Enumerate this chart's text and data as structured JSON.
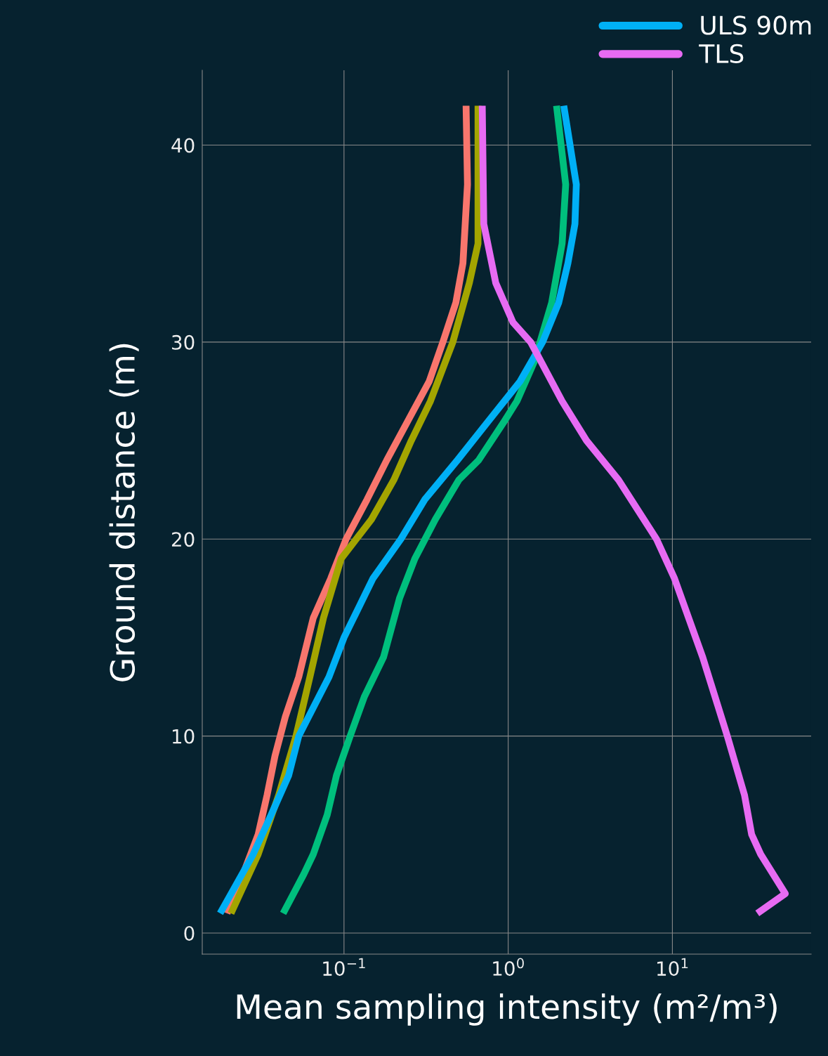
{
  "chart_data": {
    "type": "line",
    "xlabel": "Mean sampling intensity (m²/m³)",
    "ylabel": "Ground distance (m)",
    "log": "x",
    "grid": true,
    "legend": "top right",
    "line_style": "solid",
    "marker": "none",
    "xlim": [
      0.0137,
      70
    ],
    "ylim": [
      -1.07,
      43.8
    ],
    "xticks": [
      {
        "value": 0.1,
        "label": "10$^{−1}$"
      },
      {
        "value": 1,
        "label": "10$^{0}$"
      },
      {
        "value": 10,
        "label": "10$^{1}$"
      }
    ],
    "yticks": [
      0,
      10,
      20,
      30,
      40
    ],
    "series": [
      {
        "color": "#f8766d",
        "x": [
          0.554,
          0.565,
          0.53,
          0.48,
          0.4,
          0.33,
          0.245,
          0.182,
          0.138,
          0.103,
          0.083,
          0.065,
          0.053,
          0.044,
          0.038,
          0.034,
          0.03,
          0.0243,
          0.0194
        ],
        "values": [
          42,
          38,
          34,
          32,
          30,
          28,
          26,
          24,
          22,
          20,
          18,
          16,
          13,
          11,
          9,
          7,
          5,
          3,
          1
        ]
      },
      {
        "color": "#a3a500",
        "x": [
          0.655,
          0.655,
          0.655,
          0.58,
          0.46,
          0.336,
          0.257,
          0.201,
          0.147,
          0.096,
          0.075,
          0.062,
          0.051,
          0.04,
          0.03,
          0.0205
        ],
        "values": [
          42,
          38,
          35,
          33,
          30,
          27,
          25,
          23,
          21,
          19,
          16,
          13,
          10,
          7,
          4,
          1
        ]
      },
      {
        "color": "#00bf7d",
        "x": [
          1.97,
          2.24,
          2.13,
          1.84,
          1.44,
          1.13,
          0.95,
          0.66,
          0.5,
          0.36,
          0.27,
          0.218,
          0.174,
          0.133,
          0.109,
          0.09,
          0.079,
          0.065,
          0.057,
          0.0426
        ],
        "values": [
          42,
          38,
          35,
          32,
          29,
          27,
          26,
          24,
          23,
          21,
          19,
          17,
          14,
          12,
          10,
          8,
          6,
          4,
          3,
          1
        ]
      },
      {
        "name": "ULS 90m",
        "color": "#00b0f6",
        "x": [
          2.18,
          2.6,
          2.55,
          2.31,
          2.03,
          1.62,
          1.18,
          0.76,
          0.49,
          0.31,
          0.222,
          0.15,
          0.1,
          0.081,
          0.053,
          0.046,
          0.036,
          0.028,
          0.0176
        ],
        "values": [
          42,
          38,
          36,
          34,
          32,
          30,
          28,
          26,
          24,
          22,
          20,
          18,
          15,
          13,
          10,
          8,
          6,
          4,
          1
        ]
      },
      {
        "name": "TLS",
        "color": "#e76bf3",
        "x": [
          0.695,
          0.71,
          0.84,
          1.07,
          1.37,
          2.13,
          3.0,
          4.7,
          8.0,
          10.3,
          15.3,
          21.6,
          27.5,
          30.4,
          34.5,
          48.7,
          32.9
        ],
        "values": [
          42,
          36,
          33,
          31,
          30,
          27,
          25,
          23,
          20,
          18,
          14,
          10,
          7,
          5,
          4,
          2,
          1
        ]
      }
    ]
  }
}
